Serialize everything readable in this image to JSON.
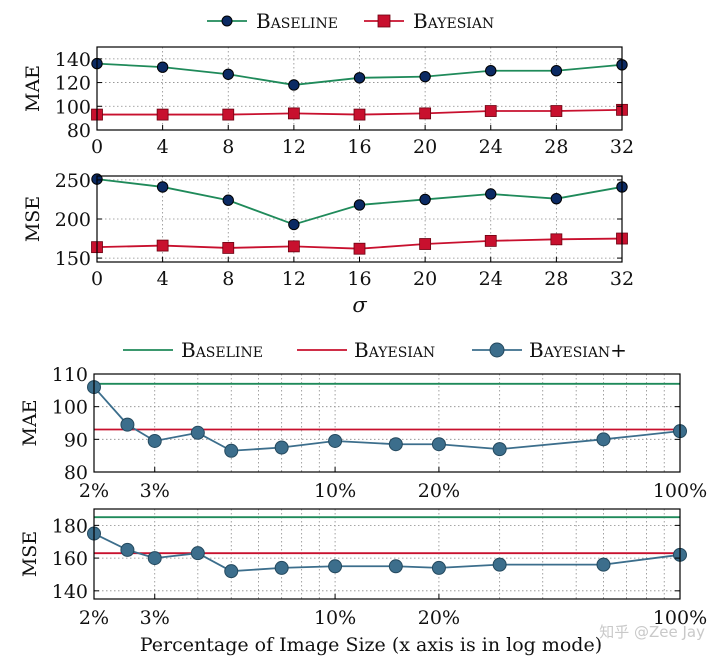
{
  "colors": {
    "baseline": "#1f8a5a",
    "bayesian": "#c8102e",
    "bayesian_plus": "#3c6e8c",
    "marker_navy": "#0b2a63",
    "grid": "#8a8a8a"
  },
  "legend_top": {
    "baseline": "Baseline",
    "bayesian": "Bayesian"
  },
  "legend_bottom": {
    "baseline": "Baseline",
    "bayesian": "Bayesian",
    "bayesian_plus": "Bayesian+"
  },
  "watermark": "知乎 @Zee Jay",
  "chart_data": [
    {
      "id": "sigma-mae",
      "type": "line",
      "title": "",
      "xlabel": "",
      "ylabel": "MAE",
      "x": [
        0,
        4,
        8,
        12,
        16,
        20,
        24,
        28,
        32
      ],
      "xticks": [
        "0",
        "4",
        "8",
        "12",
        "16",
        "20",
        "24",
        "28",
        "32"
      ],
      "yticks": [
        "80",
        "100",
        "120",
        "140"
      ],
      "ylim": [
        80,
        150
      ],
      "grid": true,
      "series": [
        {
          "name": "Baseline",
          "values": [
            136,
            133,
            127,
            118,
            124,
            125,
            130,
            130,
            135
          ]
        },
        {
          "name": "Bayesian",
          "values": [
            93,
            93,
            93,
            94,
            93,
            94,
            96,
            96,
            97
          ]
        }
      ]
    },
    {
      "id": "sigma-mse",
      "type": "line",
      "title": "",
      "xlabel": "σ",
      "ylabel": "MSE",
      "x": [
        0,
        4,
        8,
        12,
        16,
        20,
        24,
        28,
        32
      ],
      "xticks": [
        "0",
        "4",
        "8",
        "12",
        "16",
        "20",
        "24",
        "28",
        "32"
      ],
      "yticks": [
        "150",
        "200",
        "250"
      ],
      "ylim": [
        145,
        255
      ],
      "grid": true,
      "series": [
        {
          "name": "Baseline",
          "values": [
            251,
            241,
            224,
            193,
            218,
            225,
            232,
            226,
            241
          ]
        },
        {
          "name": "Bayesian",
          "values": [
            164,
            166,
            163,
            165,
            162,
            168,
            172,
            174,
            175
          ]
        }
      ]
    },
    {
      "id": "size-mae",
      "type": "line",
      "title": "",
      "xlabel": "",
      "ylabel": "MAE",
      "xscale": "log",
      "x": [
        2,
        2.5,
        3,
        4,
        5,
        7,
        10,
        15,
        20,
        30,
        60,
        100
      ],
      "xticks": [
        "2%",
        "3%",
        "10%",
        "20%",
        "100%"
      ],
      "xtick_values": [
        2,
        3,
        10,
        20,
        100
      ],
      "yticks": [
        "80",
        "90",
        "100",
        "110"
      ],
      "ylim": [
        80,
        110
      ],
      "grid": true,
      "series": [
        {
          "name": "Baseline",
          "values": [
            107,
            107,
            107,
            107,
            107,
            107,
            107,
            107,
            107,
            107,
            107,
            107
          ]
        },
        {
          "name": "Bayesian",
          "values": [
            93,
            93,
            93,
            93,
            93,
            93,
            93,
            93,
            93,
            93,
            93,
            93
          ]
        },
        {
          "name": "Bayesian+",
          "values": [
            106,
            94.5,
            89.5,
            92,
            86.5,
            87.5,
            89.5,
            88.5,
            88.5,
            87,
            90,
            92.5
          ]
        }
      ]
    },
    {
      "id": "size-mse",
      "type": "line",
      "title": "",
      "xlabel": "Percentage of Image Size (x axis is in log mode)",
      "ylabel": "MSE",
      "xscale": "log",
      "x": [
        2,
        2.5,
        3,
        4,
        5,
        7,
        10,
        15,
        20,
        30,
        60,
        100
      ],
      "xticks": [
        "2%",
        "3%",
        "10%",
        "20%",
        "100%"
      ],
      "xtick_values": [
        2,
        3,
        10,
        20,
        100
      ],
      "yticks": [
        "140",
        "160",
        "180"
      ],
      "ylim": [
        135,
        190
      ],
      "grid": true,
      "series": [
        {
          "name": "Baseline",
          "values": [
            185,
            185,
            185,
            185,
            185,
            185,
            185,
            185,
            185,
            185,
            185,
            185
          ]
        },
        {
          "name": "Bayesian",
          "values": [
            163,
            163,
            163,
            163,
            163,
            163,
            163,
            163,
            163,
            163,
            163,
            163
          ]
        },
        {
          "name": "Bayesian+",
          "values": [
            175,
            165,
            160,
            163,
            152,
            154,
            155,
            155,
            154,
            156,
            156,
            162
          ]
        }
      ]
    }
  ]
}
